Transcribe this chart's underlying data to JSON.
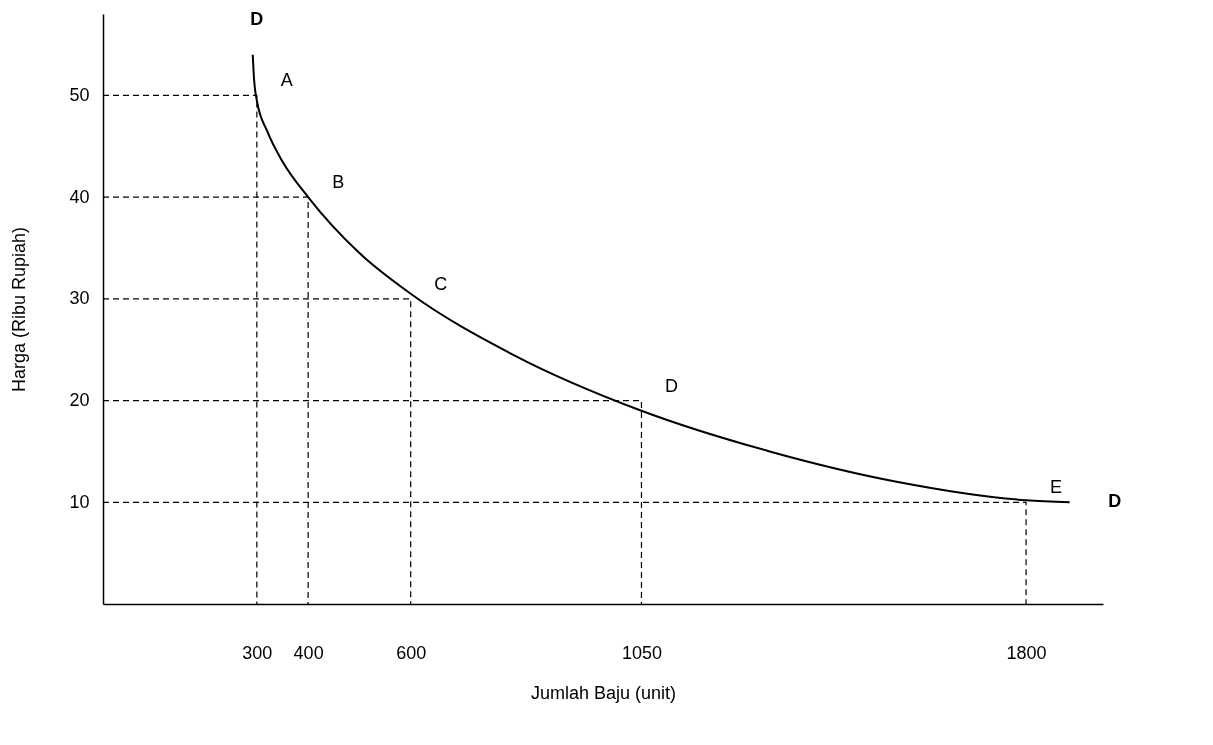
{
  "chart_data": {
    "type": "line",
    "xlabel": "Jumlah Baju (unit)",
    "ylabel": "Harga (Ribu Rupiah)",
    "xlim": [
      0,
      1950
    ],
    "ylim": [
      0,
      58
    ],
    "xticks": [
      300,
      400,
      600,
      1050,
      1800
    ],
    "yticks": [
      10,
      20,
      30,
      40,
      50
    ],
    "grid": false,
    "marker": "none",
    "series": [
      {
        "color": "#000000",
        "line_style": "solid",
        "x": [
          292,
          294,
          300,
          320,
          350,
          400,
          500,
          600,
          800,
          1050,
          1300,
          1550,
          1800,
          1885
        ],
        "values": [
          54,
          52,
          49.5,
          46.5,
          43.5,
          40,
          34.5,
          30.5,
          24.5,
          19,
          15,
          12,
          10.2,
          10
        ]
      },
      {
        "color": "#000000",
        "line_style": "dashed",
        "x": [
          0,
          300,
          300
        ],
        "values": [
          50,
          50,
          0
        ]
      },
      {
        "color": "#000000",
        "line_style": "dashed",
        "x": [
          0,
          400,
          400
        ],
        "values": [
          40,
          40,
          0
        ]
      },
      {
        "color": "#000000",
        "line_style": "dashed",
        "x": [
          0,
          600,
          600
        ],
        "values": [
          30,
          30,
          0
        ]
      },
      {
        "color": "#000000",
        "line_style": "dashed",
        "x": [
          0,
          1050,
          1050
        ],
        "values": [
          20,
          20,
          0
        ]
      },
      {
        "color": "#000000",
        "line_style": "dashed",
        "x": [
          0,
          1800,
          1800
        ],
        "values": [
          10,
          10,
          0
        ]
      }
    ],
    "annotations": [
      {
        "text": "D",
        "x": 292,
        "y": 54
      },
      {
        "text": "D",
        "x": 1885,
        "y": 10
      },
      {
        "text": "A",
        "x": 300,
        "y": 50
      },
      {
        "text": "B",
        "x": 400,
        "y": 40
      },
      {
        "text": "C",
        "x": 600,
        "y": 30
      },
      {
        "text": "D",
        "x": 1050,
        "y": 20
      },
      {
        "text": "E",
        "x": 1800,
        "y": 10
      }
    ]
  }
}
